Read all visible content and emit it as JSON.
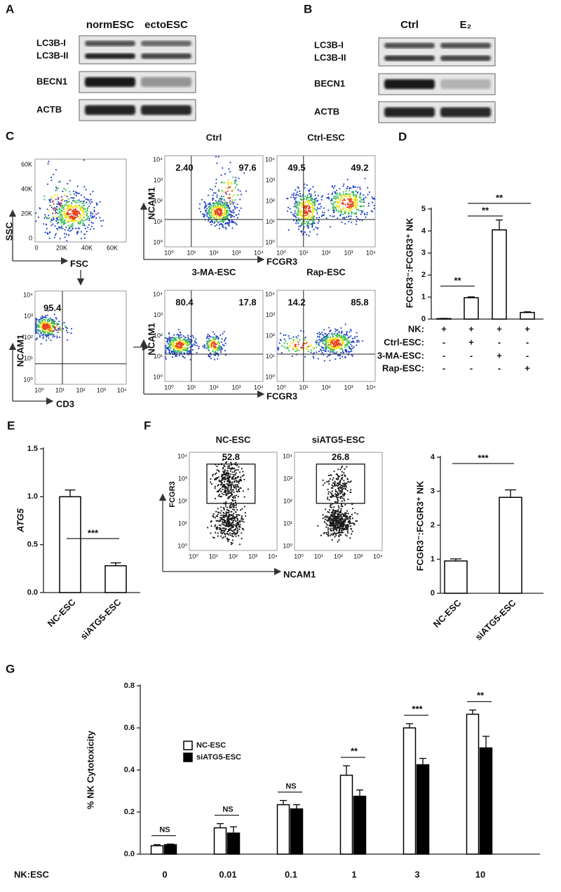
{
  "panels": {
    "A": {
      "letter": "A",
      "columns": [
        "normESC",
        "ectoESC"
      ],
      "rows": [
        "LC3B-I",
        "LC3B-II",
        "BECN1",
        "ACTB"
      ]
    },
    "B": {
      "letter": "B",
      "columns": [
        "Ctrl",
        "E₂"
      ],
      "rows": [
        "LC3B-I",
        "LC3B-II",
        "BECN1",
        "ACTB"
      ]
    },
    "C": {
      "letter": "C",
      "scatter": {
        "x_label": "FSC",
        "y_label": "SSC",
        "ticks": [
          "0",
          "20K",
          "40K",
          "60K"
        ]
      },
      "gate": {
        "x_label": "CD3",
        "y_label": "NCAM1",
        "value": "95.4"
      },
      "log_ticks": [
        "10⁰",
        "10¹",
        "10²",
        "10³",
        "10⁴"
      ],
      "plots": [
        {
          "title": "Ctrl",
          "values": [
            "2.40",
            "97.6"
          ]
        },
        {
          "title": "Ctrl-ESC",
          "values": [
            "49.5",
            "49.2"
          ]
        },
        {
          "title": "3-MA-ESC",
          "values": [
            "80.4",
            "17.8"
          ]
        },
        {
          "title": "Rap-ESC",
          "values": [
            "14.2",
            "85.8"
          ]
        }
      ],
      "x_label": "FCGR3",
      "y_label": "NCAM1"
    },
    "F": {
      "letter": "F",
      "plots": [
        {
          "title": "NC-ESC",
          "value": "52.8"
        },
        {
          "title": "siATG5-ESC",
          "value": "26.8"
        }
      ],
      "x_label": "NCAM1",
      "y_label": "FCGR3"
    }
  },
  "chart_data": [
    {
      "type": "bar",
      "letter": "D",
      "y_label": "FCGR3⁻:FCGR3⁺ NK",
      "categories": [
        null,
        null,
        null,
        null
      ],
      "values": [
        0.02,
        0.97,
        4.05,
        0.3
      ],
      "errors": [
        0.01,
        0.04,
        0.45,
        0.03
      ],
      "color": "#ffffff",
      "ylim": [
        0,
        5
      ],
      "yticks": [
        0,
        1,
        2,
        3,
        4,
        5
      ],
      "significance": [
        "**",
        "**",
        "**"
      ],
      "conditions": [
        {
          "label": "NK:",
          "marks": [
            "+",
            "+",
            "+",
            "+"
          ]
        },
        {
          "label": "Ctrl-ESC:",
          "marks": [
            "-",
            "+",
            "-",
            "-"
          ]
        },
        {
          "label": "3-MA-ESC:",
          "marks": [
            "-",
            "-",
            "+",
            "-"
          ]
        },
        {
          "label": "Rap-ESC:",
          "marks": [
            "-",
            "-",
            "-",
            "+"
          ]
        }
      ]
    },
    {
      "type": "bar",
      "letter": "E",
      "y_label": "ATG5",
      "categories": [
        "NC-ESC",
        "siATG5-ESC"
      ],
      "values": [
        1.0,
        0.28
      ],
      "errors": [
        0.07,
        0.03
      ],
      "color": "#ffffff",
      "ylim": [
        0,
        1.5
      ],
      "yticks": [
        {
          "value": 0,
          "label": "0.0"
        },
        0.5,
        {
          "value": 1,
          "label": "1.0"
        },
        1.5
      ],
      "significance": [
        "***"
      ]
    },
    {
      "type": "bar",
      "y_label": "FCGR3⁻:FCGR3⁺ NK",
      "categories": [
        "NC-ESC",
        "siATG5-ESC"
      ],
      "values": [
        0.95,
        2.82
      ],
      "errors": [
        0.06,
        0.22
      ],
      "color": "#ffffff",
      "ylim": [
        0,
        4
      ],
      "yticks": [
        0,
        1,
        2,
        3,
        4
      ],
      "significance": [
        "***"
      ]
    },
    {
      "type": "grouped_bar",
      "letter": "G",
      "y_label": "% NK Cytotoxicity",
      "x_label": "NK:ESC",
      "categories": [
        "0",
        "0.01",
        "0.1",
        "1",
        "3",
        "10"
      ],
      "series": [
        {
          "name": "NC-ESC",
          "color": "#ffffff",
          "values": [
            0.04,
            0.125,
            0.235,
            0.375,
            0.6,
            0.665
          ],
          "errors": [
            0.005,
            0.02,
            0.02,
            0.045,
            0.02,
            0.02
          ]
        },
        {
          "name": "siATG5-ESC",
          "color": "#000000",
          "values": [
            0.045,
            0.1,
            0.215,
            0.275,
            0.425,
            0.505
          ],
          "errors": [
            0.003,
            0.03,
            0.02,
            0.03,
            0.03,
            0.055
          ]
        }
      ],
      "ylim": [
        0,
        0.8
      ],
      "yticks": [
        {
          "value": 0,
          "label": "0.0"
        },
        0.2,
        0.4,
        0.6,
        0.8
      ],
      "significance": [
        "NS",
        "NS",
        "NS",
        "**",
        "***",
        "**"
      ]
    }
  ]
}
